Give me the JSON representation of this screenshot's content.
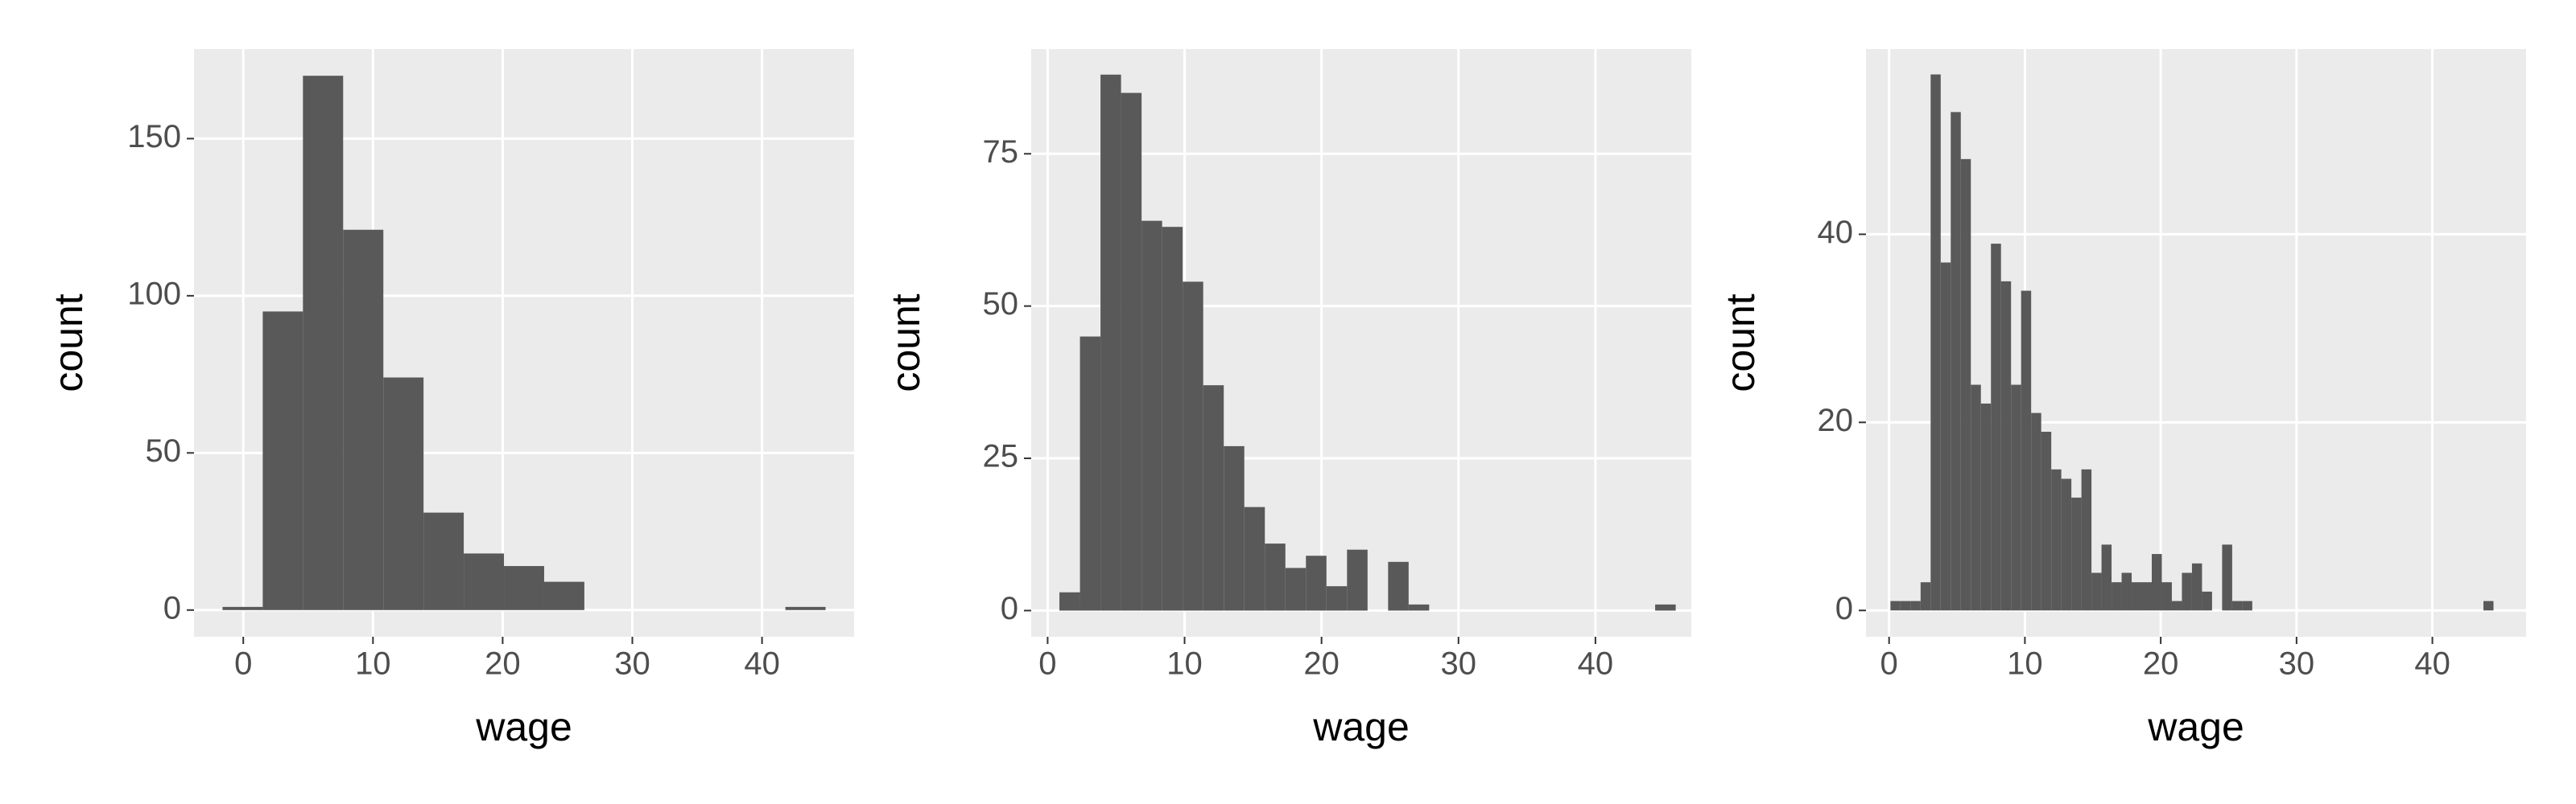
{
  "chart_data": [
    {
      "type": "histogram",
      "x_label": "wage",
      "y_label": "count",
      "color": "#595959",
      "grid": true,
      "bins": [
        -1.6,
        1.5,
        4.6,
        7.7,
        10.8,
        13.9,
        17,
        20.1,
        23.2,
        26.3,
        29.4,
        32.5,
        35.6,
        38.7,
        41.8,
        44.9
      ],
      "counts": [
        1,
        95,
        170,
        121,
        74,
        31,
        18,
        14,
        9,
        0,
        0,
        0,
        0,
        0,
        1
      ],
      "xlim": [
        -3.8,
        47.1
      ],
      "ylim": [
        -8.5,
        178.5
      ],
      "xticks": [
        0,
        10,
        20,
        30,
        40
      ],
      "yticks": [
        0,
        50,
        100,
        150
      ]
    },
    {
      "type": "histogram",
      "x_label": "wage",
      "y_label": "count",
      "color": "#595959",
      "grid": true,
      "bins": [
        0.86,
        2.36,
        3.86,
        5.36,
        6.86,
        8.36,
        9.86,
        11.36,
        12.86,
        14.36,
        15.86,
        17.36,
        18.86,
        20.36,
        21.86,
        23.36,
        24.86,
        26.36,
        27.86,
        29.36,
        30.86,
        32.36,
        33.86,
        35.36,
        36.86,
        38.36,
        39.86,
        41.36,
        42.86,
        44.36,
        45.86
      ],
      "counts": [
        3,
        45,
        88,
        85,
        64,
        63,
        54,
        37,
        27,
        17,
        11,
        7,
        9,
        4,
        10,
        0,
        8,
        1,
        0,
        0,
        0,
        0,
        0,
        0,
        0,
        0,
        0,
        0,
        0,
        1
      ],
      "xlim": [
        -1.2,
        47
      ],
      "ylim": [
        -4.3,
        92.2
      ],
      "xticks": [
        0,
        10,
        20,
        30,
        40
      ],
      "yticks": [
        0,
        25,
        50,
        75
      ]
    },
    {
      "type": "histogram",
      "x_label": "wage",
      "y_label": "count",
      "color": "#595959",
      "grid": true,
      "bins": [
        0.1,
        0.84,
        1.58,
        2.32,
        3.06,
        3.8,
        4.54,
        5.28,
        6.02,
        6.76,
        7.5,
        8.24,
        8.98,
        9.72,
        10.46,
        11.2,
        11.94,
        12.68,
        13.42,
        14.16,
        14.9,
        15.64,
        16.38,
        17.12,
        17.86,
        18.6,
        19.34,
        20.08,
        20.82,
        21.56,
        22.3,
        23.04,
        23.78,
        24.52,
        25.26,
        26,
        26.74,
        27.48,
        28.22,
        28.96,
        29.7,
        30.44,
        31.18,
        31.92,
        32.66,
        33.4,
        34.14,
        34.88,
        35.62,
        36.36,
        37.1,
        37.84,
        38.58,
        39.32,
        40.06,
        40.8,
        41.54,
        42.28,
        43.02,
        43.76,
        44.5
      ],
      "counts": [
        1,
        1,
        1,
        3,
        57,
        37,
        53,
        48,
        24,
        22,
        39,
        35,
        24,
        34,
        21,
        19,
        15,
        14,
        12,
        15,
        4,
        7,
        3,
        4,
        3,
        3,
        6,
        3,
        1,
        4,
        5,
        2,
        0,
        7,
        1,
        1,
        0,
        0,
        0,
        0,
        0,
        0,
        0,
        0,
        0,
        0,
        0,
        0,
        0,
        0,
        0,
        0,
        0,
        0,
        0,
        0,
        0,
        0,
        0,
        1
      ],
      "xlim": [
        -1.7,
        46.9
      ],
      "ylim": [
        -2.8,
        59.7
      ],
      "xticks": [
        0,
        10,
        20,
        30,
        40
      ],
      "yticks": [
        0,
        20,
        40
      ]
    }
  ]
}
